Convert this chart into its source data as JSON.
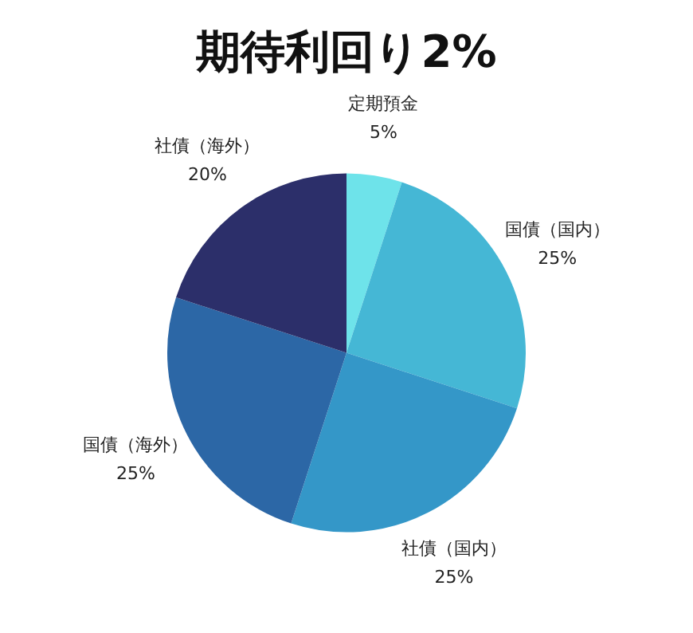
{
  "chart_data": {
    "type": "pie",
    "title": "期待利回り2%",
    "categories": [
      "定期預金",
      "国債（国内）",
      "社債（国内）",
      "国債（海外）",
      "社債（海外）"
    ],
    "values": [
      5,
      25,
      25,
      25,
      20
    ],
    "value_labels": [
      "5%",
      "25%",
      "25%",
      "25%",
      "20%"
    ],
    "colors": [
      "#6ee3ea",
      "#45b7d5",
      "#3497c8",
      "#2c67a6",
      "#2c2f6a"
    ],
    "legend": false
  }
}
